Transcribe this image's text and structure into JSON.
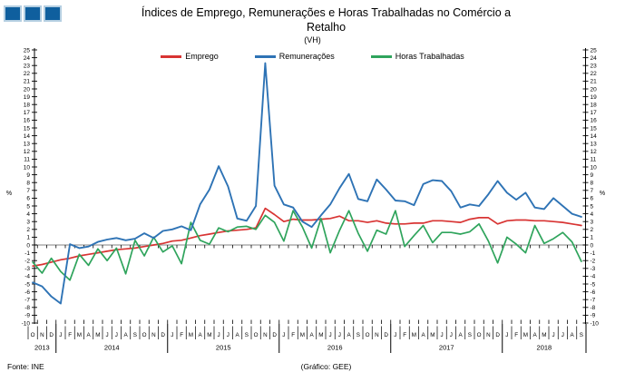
{
  "header": {
    "title_line1": "Índices de Emprego, Remunerações e Horas Trabalhadas no Comércio a",
    "title_line2": "Retalho",
    "subtitle": "(VH)"
  },
  "footer": {
    "source": "Fonte: INE",
    "credit": "(Gráfico: GEE)"
  },
  "logo": {
    "squares": 3,
    "fill_color": "#0f5f9e",
    "border_color": "#b5cfe2"
  },
  "chart_data": {
    "type": "line",
    "title": "Índices de Emprego, Remunerações e Horas Trabalhadas no Comércio a Retalho",
    "subtitle": "(VH)",
    "ylabel": "%",
    "ylim": [
      -10,
      25
    ],
    "y_tick_step": 1,
    "grid": "zero-line-only",
    "legend_position": "top-center",
    "zero_line_color": "#9c9c9c",
    "x_months": [
      "O",
      "N",
      "D",
      "J",
      "F",
      "M",
      "A",
      "M",
      "J",
      "J",
      "A",
      "S",
      "O",
      "N",
      "D",
      "J",
      "F",
      "M",
      "A",
      "M",
      "J",
      "J",
      "A",
      "S",
      "O",
      "N",
      "D",
      "J",
      "F",
      "M",
      "A",
      "M",
      "J",
      "J",
      "A",
      "S",
      "O",
      "N",
      "D",
      "J",
      "F",
      "M",
      "A",
      "M",
      "J",
      "J",
      "A",
      "S",
      "O",
      "N",
      "D",
      "J",
      "F",
      "M",
      "A",
      "M",
      "J",
      "J",
      "A",
      "S"
    ],
    "years": [
      {
        "label": "2013",
        "months": 3
      },
      {
        "label": "2014",
        "months": 12
      },
      {
        "label": "2015",
        "months": 12
      },
      {
        "label": "2016",
        "months": 12
      },
      {
        "label": "2017",
        "months": 12
      },
      {
        "label": "2018",
        "months": 9
      }
    ],
    "series": [
      {
        "name": "Emprego",
        "color": "#d83433",
        "values": [
          -2.7,
          -2.5,
          -2.2,
          -1.9,
          -1.7,
          -1.4,
          -1.2,
          -1.0,
          -0.8,
          -0.6,
          -0.5,
          -0.4,
          -0.2,
          0.0,
          0.2,
          0.5,
          0.6,
          0.9,
          1.2,
          1.4,
          1.6,
          1.8,
          1.9,
          2.0,
          2.2,
          4.7,
          3.9,
          3.0,
          3.3,
          3.2,
          3.2,
          3.3,
          3.4,
          3.7,
          3.1,
          3.1,
          2.9,
          3.1,
          2.8,
          2.7,
          2.7,
          2.8,
          2.8,
          3.1,
          3.1,
          3.0,
          2.9,
          3.3,
          3.5,
          3.5,
          2.7,
          3.1,
          3.2,
          3.2,
          3.1,
          3.1,
          3.0,
          2.9,
          2.7,
          2.5
        ]
      },
      {
        "name": "Remunerações",
        "color": "#2e73b5",
        "values": [
          -4.8,
          -5.3,
          -6.6,
          -7.5,
          0.1,
          -0.4,
          -0.2,
          0.4,
          0.7,
          0.9,
          0.6,
          0.8,
          1.5,
          0.9,
          1.8,
          2.0,
          2.4,
          1.9,
          5.2,
          7.1,
          10.1,
          7.5,
          3.4,
          3.1,
          5.0,
          23.3,
          7.6,
          5.2,
          4.8,
          3.0,
          2.3,
          3.8,
          5.2,
          7.3,
          9.1,
          5.9,
          5.6,
          8.4,
          7.1,
          5.7,
          5.6,
          5.1,
          7.8,
          8.3,
          8.2,
          6.9,
          4.8,
          5.2,
          5.0,
          6.5,
          8.2,
          6.7,
          5.8,
          6.7,
          4.8,
          4.6,
          6.0,
          5.0,
          4.0,
          3.6
        ]
      },
      {
        "name": "Horas Trabalhadas",
        "color": "#2fa45c",
        "values": [
          -2.2,
          -3.6,
          -1.7,
          -3.4,
          -4.5,
          -1.2,
          -2.6,
          -0.5,
          -2.0,
          -0.4,
          -3.7,
          0.6,
          -1.4,
          1.0,
          -0.9,
          -0.1,
          -2.4,
          2.9,
          0.6,
          0.1,
          2.2,
          1.7,
          2.3,
          2.4,
          2.0,
          3.8,
          2.9,
          0.5,
          4.4,
          2.3,
          -0.4,
          3.4,
          -1.0,
          1.9,
          4.4,
          1.5,
          -0.8,
          1.9,
          1.4,
          4.4,
          -0.2,
          1.2,
          2.5,
          0.3,
          1.6,
          1.6,
          1.4,
          1.7,
          2.7,
          0.5,
          -2.3,
          1.0,
          0.1,
          -1.0,
          2.5,
          0.2,
          0.8,
          1.6,
          0.4,
          -2.1
        ]
      }
    ]
  }
}
